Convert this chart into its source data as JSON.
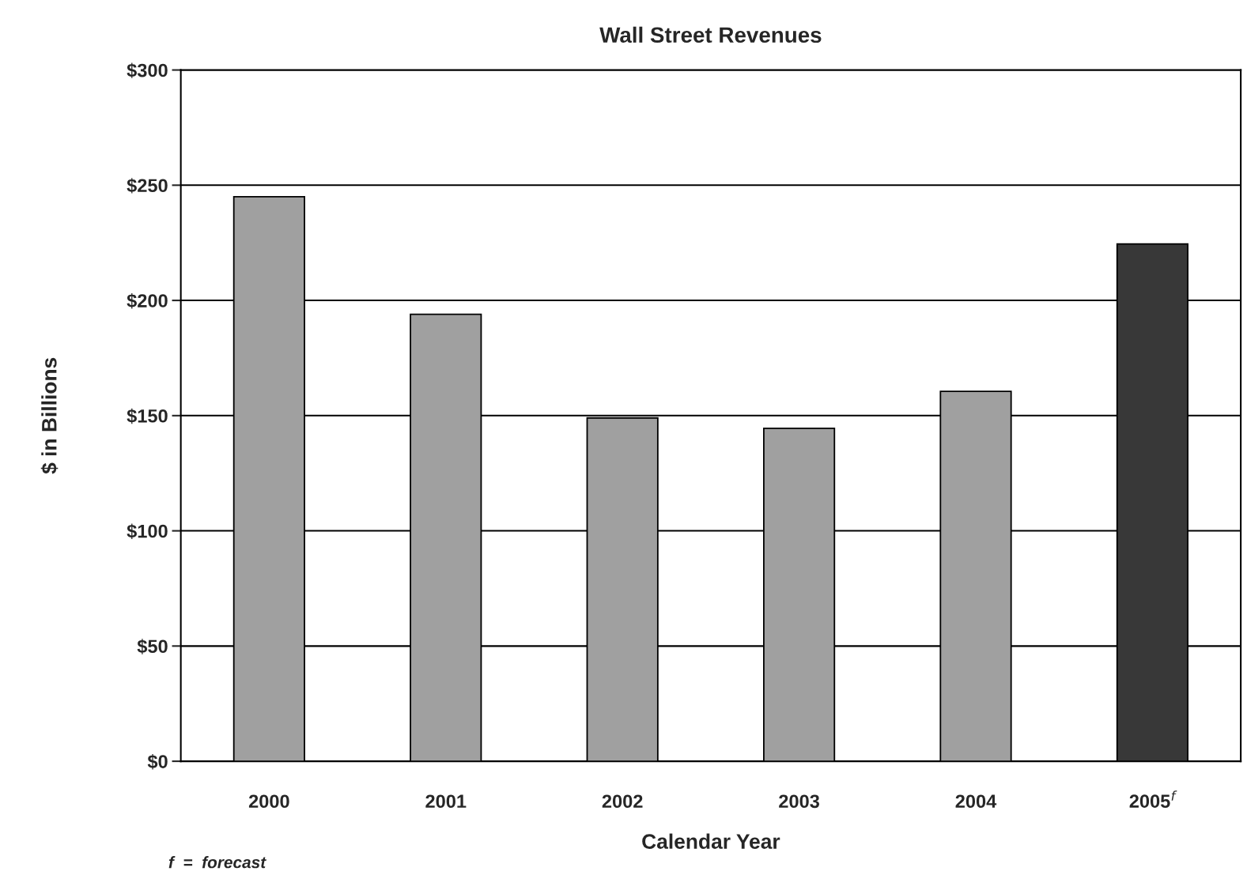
{
  "chart_data": {
    "type": "bar",
    "title": "Wall Street Revenues",
    "xlabel": "Calendar Year",
    "ylabel": "$ in Billions",
    "categories": [
      "2000",
      "2001",
      "2002",
      "2003",
      "2004",
      "2005$^{f}$"
    ],
    "values": [
      245,
      194,
      149,
      144.5,
      160.5,
      224.5
    ],
    "colors": [
      "#a0a0a0",
      "#a0a0a0",
      "#a0a0a0",
      "#a0a0a0",
      "#a0a0a0",
      "#383838"
    ],
    "ylim": [
      0,
      300
    ],
    "yticks": [
      {
        "value": 0,
        "label": "$0"
      },
      {
        "value": 50,
        "label": "$50"
      },
      {
        "value": 100,
        "label": "$100"
      },
      {
        "value": 150,
        "label": "$150"
      },
      {
        "value": 200,
        "label": "$200"
      },
      {
        "value": 250,
        "label": "$250"
      },
      {
        "value": 300,
        "label": "$300"
      }
    ],
    "grid": "y",
    "annotations": [
      "f  =  forecast"
    ]
  }
}
